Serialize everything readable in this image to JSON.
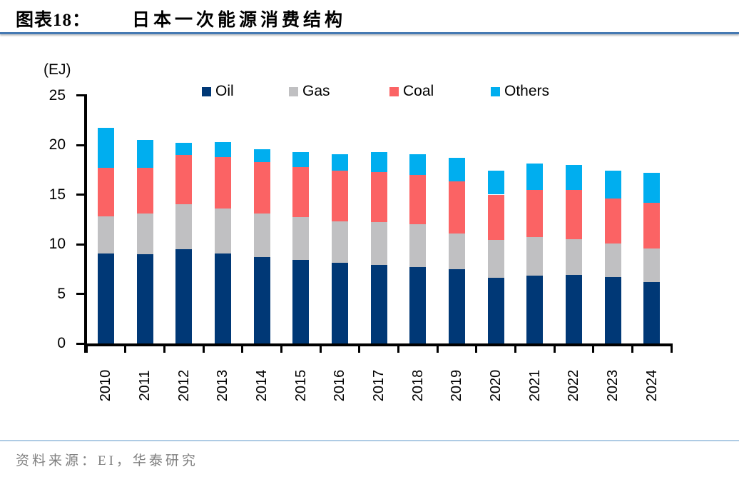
{
  "header": {
    "title_prefix": "图表18：",
    "title": "日本一次能源消费结构"
  },
  "footer": {
    "source": "资料来源：EI，华泰研究"
  },
  "chart_data": {
    "type": "bar",
    "stacked": true,
    "title": "日本一次能源消费结构",
    "unit_label": "(EJ)",
    "xlabel": "",
    "ylabel": "EJ",
    "ylim": [
      0,
      25
    ],
    "y_ticks": [
      0,
      5,
      10,
      15,
      20,
      25
    ],
    "grid": false,
    "legend_position": "top",
    "categories": [
      "2010",
      "2011",
      "2012",
      "2013",
      "2014",
      "2015",
      "2016",
      "2017",
      "2018",
      "2019",
      "2020",
      "2021",
      "2022",
      "2023",
      "2024"
    ],
    "series": [
      {
        "name": "Oil",
        "color": "#003876",
        "values": [
          9.1,
          9.0,
          9.5,
          9.1,
          8.7,
          8.4,
          8.1,
          7.9,
          7.7,
          7.5,
          6.6,
          6.8,
          6.9,
          6.7,
          6.2
        ]
      },
      {
        "name": "Gas",
        "color": "#c0c0c2",
        "values": [
          3.7,
          4.1,
          4.5,
          4.5,
          4.4,
          4.3,
          4.2,
          4.3,
          4.3,
          3.6,
          3.8,
          3.9,
          3.6,
          3.4,
          3.4
        ]
      },
      {
        "name": "Coal",
        "color": "#fb6364",
        "values": [
          4.9,
          4.6,
          5.0,
          5.2,
          5.2,
          5.1,
          5.1,
          5.1,
          5.0,
          5.2,
          4.6,
          4.8,
          5.0,
          4.5,
          4.6
        ]
      },
      {
        "name": "Others",
        "color": "#00aeef",
        "values": [
          4.0,
          2.8,
          1.2,
          1.5,
          1.3,
          1.5,
          1.7,
          2.0,
          2.1,
          2.4,
          2.4,
          2.6,
          2.5,
          2.8,
          3.0
        ]
      }
    ],
    "totals": [
      21.7,
      20.5,
      20.2,
      20.3,
      19.6,
      19.3,
      19.1,
      19.3,
      19.1,
      18.7,
      17.4,
      18.1,
      18.0,
      17.4,
      17.2
    ]
  }
}
